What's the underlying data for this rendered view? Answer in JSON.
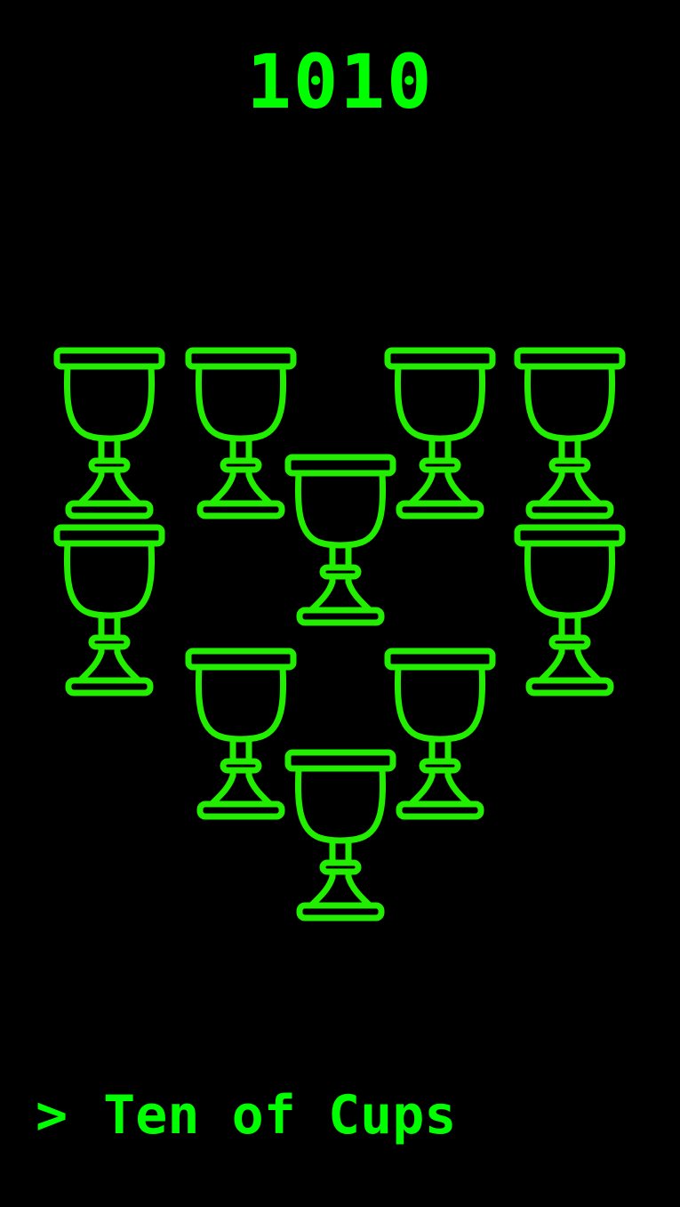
{
  "card": {
    "number": "1010",
    "prompt": ">",
    "name": "Ten of Cups"
  },
  "icon": "cup-icon",
  "cup_count": 10,
  "colors": {
    "background": "#000000",
    "accent": "#00ff00"
  }
}
